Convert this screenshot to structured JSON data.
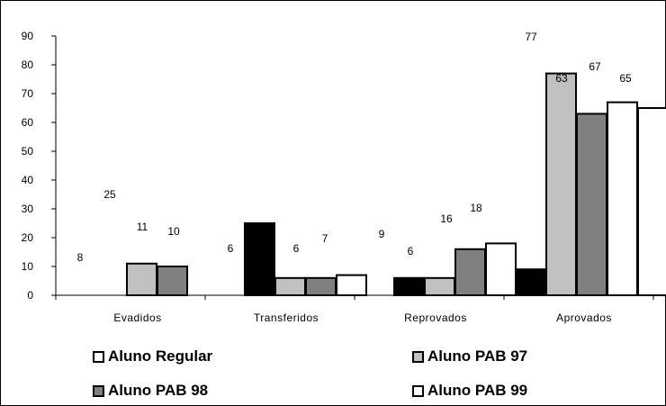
{
  "chart_data": {
    "type": "bar",
    "categories": [
      "Evadidos",
      "Transferidos",
      "Reprovados",
      "Aprovados"
    ],
    "series": [
      {
        "name": "Aluno Regular",
        "values": [
          8,
          6,
          9,
          77
        ],
        "color": "#ffffff"
      },
      {
        "name": "Aluno PAB 97",
        "values": [
          25,
          6,
          6,
          63
        ],
        "color": "#c0c0c0"
      },
      {
        "name": "Aluno PAB 98",
        "values": [
          11,
          6,
          16,
          67
        ],
        "color": "#808080"
      },
      {
        "name": "Aluno PAB 99",
        "values": [
          10,
          7,
          18,
          65
        ],
        "color": "#ffffff"
      }
    ],
    "bars": [
      {
        "fill": "#000000",
        "values": [
          0,
          25,
          6,
          9
        ]
      },
      {
        "fill": "#c0c0c0",
        "values": [
          11,
          6,
          6,
          77
        ]
      },
      {
        "fill": "#808080",
        "values": [
          10,
          6,
          16,
          63
        ]
      },
      {
        "fill": "#ffffff",
        "values": [
          0,
          7,
          18,
          67
        ]
      }
    ],
    "extra_bar": {
      "category_index": 3,
      "fill": "#ffffff",
      "value": 65
    },
    "data_labels": [
      [
        "8",
        "25",
        "11",
        "10"
      ],
      [
        "6",
        "6",
        "6",
        "7"
      ],
      [
        "9",
        "6",
        "16",
        "18"
      ],
      [
        "77",
        "63",
        "67",
        "65"
      ]
    ],
    "yticks": [
      "0",
      "10",
      "20",
      "30",
      "40",
      "50",
      "60",
      "70",
      "80",
      "90"
    ],
    "ylim": [
      0,
      90
    ],
    "grid": false,
    "legend_position": "bottom"
  }
}
